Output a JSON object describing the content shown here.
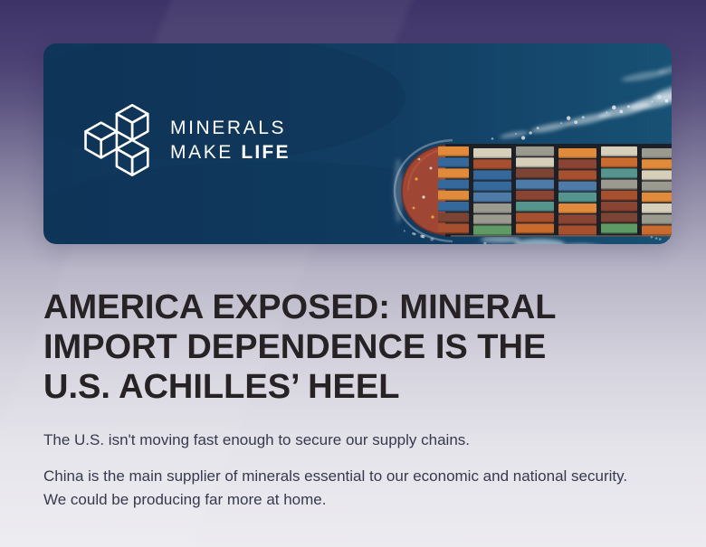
{
  "page": {
    "background_top_color": "#3d3366",
    "background_bottom_color": "#ecebf0"
  },
  "banner": {
    "logo": {
      "icon": "cubes-logo",
      "line1": "MINERALS",
      "line2_regular": "MAKE",
      "line2_bold": "LIFE",
      "text_color": "#ffffff"
    },
    "ship_illustration": {
      "description": "aerial-view-container-ship",
      "water_color": "#11395e",
      "bow_color": "#a04634",
      "deck_color": "#1d2127",
      "foam_color": "#edf4f7",
      "container_palette": [
        "#a7502f",
        "#e08a3c",
        "#4e7aa8",
        "#8a4433",
        "#5f9a64",
        "#d6cfba",
        "#7c4434",
        "#35699b",
        "#c96a2f",
        "#9b9a8f",
        "#2f74c8",
        "#55958d"
      ]
    }
  },
  "headline": {
    "color": "#272325",
    "lines": [
      "AMERICA EXPOSED: MINERAL",
      "IMPORT DEPENDENCE IS THE",
      "U.S. ACHILLES’ HEEL"
    ]
  },
  "body": {
    "text_color": "#373a4e",
    "paragraphs": [
      "The U.S. isn't moving fast enough to secure our supply chains.",
      "China is the main supplier of minerals essential to our economic and national security. We could be producing far more at home."
    ]
  }
}
